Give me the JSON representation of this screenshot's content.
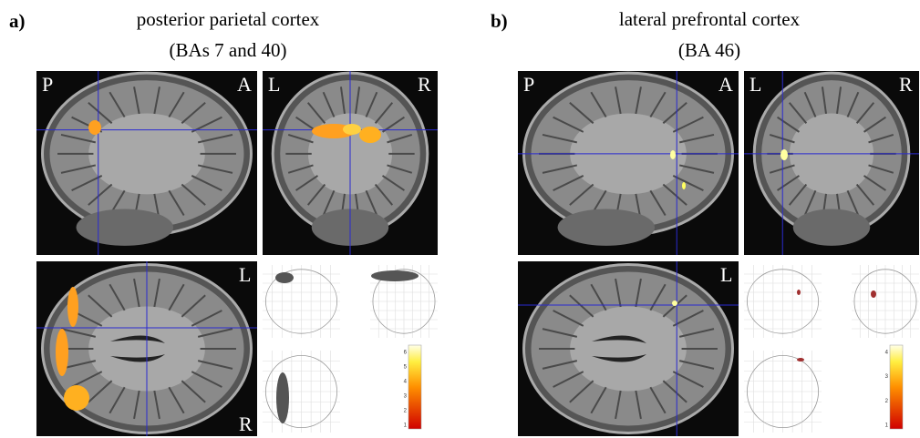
{
  "panels": [
    {
      "label": "a)",
      "title": [
        "posterior parietal cortex",
        "(BAs 7 and 40)"
      ],
      "sagittal": {
        "left": "P",
        "right": "A"
      },
      "coronal": {
        "left": "L",
        "right": "R"
      },
      "axial": {
        "top": "L",
        "bottom": "R"
      },
      "colorbar_ticks": [
        "1",
        "2",
        "3",
        "4",
        "5",
        "6"
      ]
    },
    {
      "label": "b)",
      "title": [
        "lateral prefrontal cortex",
        "(BA 46)"
      ],
      "sagittal": {
        "left": "P",
        "right": "A"
      },
      "coronal": {
        "left": "L",
        "right": "R"
      },
      "axial": {
        "top": "L"
      },
      "colorbar_ticks": [
        "1",
        "2",
        "3",
        "4"
      ]
    }
  ]
}
